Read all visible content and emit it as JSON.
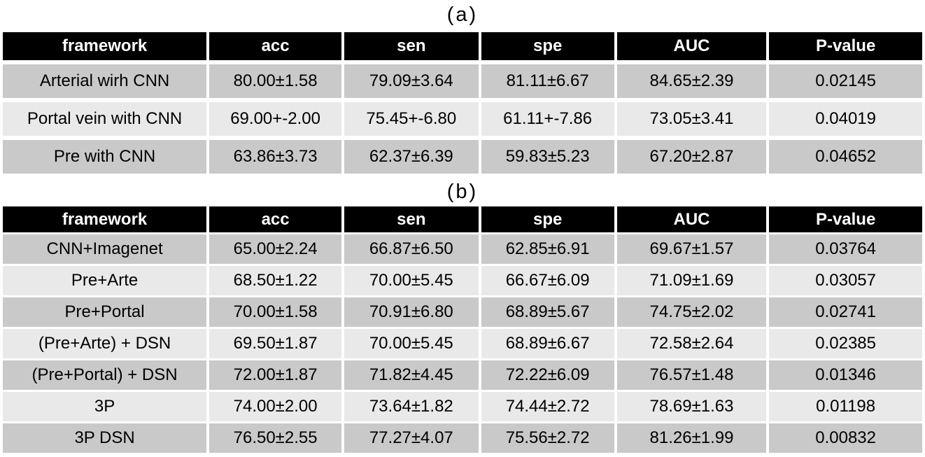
{
  "colors": {
    "header_bg": "#000000",
    "header_text": "#ffffff",
    "row_dark": "#c9c9c9",
    "row_light": "#e9e9e9",
    "cell_text": "#000000",
    "page_bg": "#ffffff"
  },
  "tables": [
    {
      "label": "(a)",
      "columns": [
        "framework",
        "acc",
        "sen",
        "spe",
        "AUC",
        "P-value"
      ],
      "rows": [
        [
          "Arterial wirh CNN",
          "80.00±1.58",
          "79.09±3.64",
          "81.11±6.67",
          "84.65±2.39",
          "0.02145"
        ],
        [
          "Portal vein with CNN",
          "69.00+-2.00",
          "75.45+-6.80",
          "61.11+-7.86",
          "73.05±3.41",
          "0.04019"
        ],
        [
          "Pre with CNN",
          "63.86±3.73",
          "62.37±6.39",
          "59.83±5.23",
          "67.20±2.87",
          "0.04652"
        ]
      ]
    },
    {
      "label": "(b)",
      "columns": [
        "framework",
        "acc",
        "sen",
        "spe",
        "AUC",
        "P-value"
      ],
      "rows": [
        [
          "CNN+Imagenet",
          "65.00±2.24",
          "66.87±6.50",
          "62.85±6.91",
          "69.67±1.57",
          "0.03764"
        ],
        [
          "Pre+Arte",
          "68.50±1.22",
          "70.00±5.45",
          "66.67±6.09",
          "71.09±1.69",
          "0.03057"
        ],
        [
          "Pre+Portal",
          "70.00±1.58",
          "70.91±6.80",
          "68.89±5.67",
          "74.75±2.02",
          "0.02741"
        ],
        [
          "(Pre+Arte) + DSN",
          "69.50±1.87",
          "70.00±5.45",
          "68.89±6.67",
          "72.58±2.64",
          "0.02385"
        ],
        [
          "(Pre+Portal) + DSN",
          "72.00±1.87",
          "71.82±4.45",
          "72.22±6.09",
          "76.57±1.48",
          "0.01346"
        ],
        [
          "3P",
          "74.00±2.00",
          "73.64±1.82",
          "74.44±2.72",
          "78.69±1.63",
          "0.01198"
        ],
        [
          "3P DSN",
          "76.50±2.55",
          "77.27±4.07",
          "75.56±2.72",
          "81.26±1.99",
          "0.00832"
        ]
      ]
    }
  ]
}
